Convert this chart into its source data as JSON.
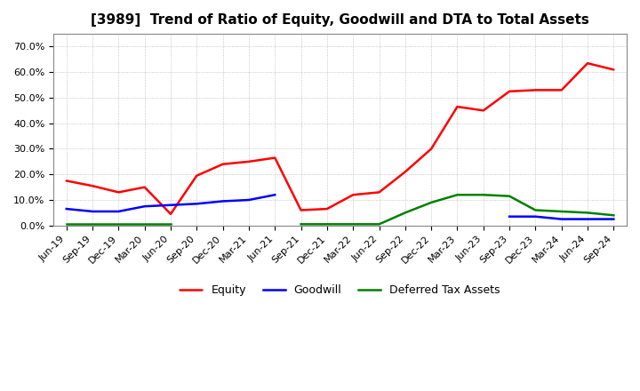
{
  "title": "[3989]  Trend of Ratio of Equity, Goodwill and DTA to Total Assets",
  "x_labels": [
    "Jun-19",
    "Sep-19",
    "Dec-19",
    "Mar-20",
    "Jun-20",
    "Sep-20",
    "Dec-20",
    "Mar-21",
    "Jun-21",
    "Sep-21",
    "Dec-21",
    "Mar-22",
    "Jun-22",
    "Sep-22",
    "Dec-22",
    "Mar-23",
    "Jun-23",
    "Sep-23",
    "Dec-23",
    "Mar-24",
    "Jun-24",
    "Sep-24"
  ],
  "equity": [
    17.5,
    15.5,
    13.0,
    15.0,
    4.5,
    19.5,
    24.0,
    25.0,
    26.5,
    6.0,
    6.5,
    12.0,
    13.0,
    21.0,
    30.0,
    46.5,
    45.0,
    52.5,
    53.0,
    53.0,
    63.5,
    61.0
  ],
  "goodwill": [
    6.5,
    5.5,
    5.5,
    7.5,
    8.0,
    8.5,
    9.5,
    10.0,
    12.0,
    null,
    null,
    null,
    null,
    null,
    null,
    null,
    null,
    3.5,
    3.5,
    2.5,
    2.5,
    2.5
  ],
  "dta": [
    0.5,
    0.5,
    0.5,
    0.5,
    0.5,
    null,
    null,
    null,
    null,
    0.5,
    0.5,
    0.5,
    0.5,
    5.0,
    9.0,
    12.0,
    12.0,
    11.5,
    6.0,
    5.5,
    5.0,
    4.0
  ],
  "ylim": [
    0,
    75
  ],
  "yticks": [
    0,
    10,
    20,
    30,
    40,
    50,
    60,
    70
  ],
  "equity_color": "#ff0000",
  "goodwill_color": "#0000ff",
  "dta_color": "#008000",
  "background_color": "#ffffff",
  "plot_bg_color": "#ffffff",
  "grid_color": "#aaaaaa",
  "title_fontsize": 11,
  "tick_fontsize": 8,
  "legend_labels": [
    "Equity",
    "Goodwill",
    "Deferred Tax Assets"
  ],
  "legend_fontsize": 9
}
